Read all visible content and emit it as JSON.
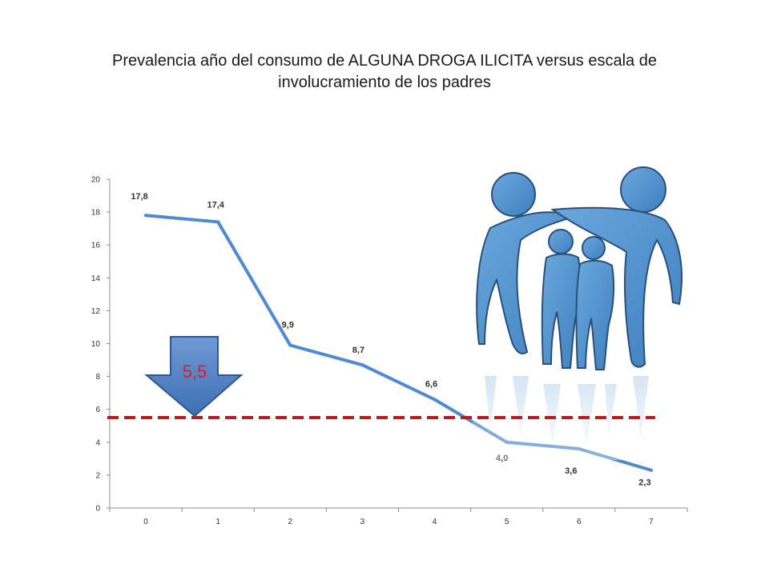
{
  "title": {
    "line1": "Prevalencia año del consumo de ALGUNA DROGA  ILICITA  versus escala de",
    "line2": "involucramiento de los padres"
  },
  "chart_data": {
    "type": "line",
    "categories": [
      "0",
      "1",
      "2",
      "3",
      "4",
      "5",
      "6",
      "7"
    ],
    "x": [
      0,
      1,
      2,
      3,
      4,
      5,
      6,
      7
    ],
    "values": [
      17.8,
      17.4,
      9.9,
      8.7,
      6.6,
      4.0,
      3.6,
      2.3
    ],
    "data_labels": [
      "17,8",
      "17,4",
      "9,9",
      "8,7",
      "6,6",
      "4,0",
      "3,6",
      "2,3"
    ],
    "ylim": [
      0,
      20
    ],
    "yticks": [
      0,
      2,
      4,
      6,
      8,
      10,
      12,
      14,
      16,
      18,
      20
    ],
    "line_color": "#4f8ad0",
    "reference_line": {
      "value": 5.5,
      "color": "#b41e1e",
      "style": "dashed"
    },
    "arrow_annotation": {
      "text": "5,5",
      "text_color": "#e0182d",
      "fill": "#4a7bbf"
    },
    "grid": false,
    "illustration": "family-silhouette-icon",
    "illustration_color": "#5b9bd0"
  }
}
